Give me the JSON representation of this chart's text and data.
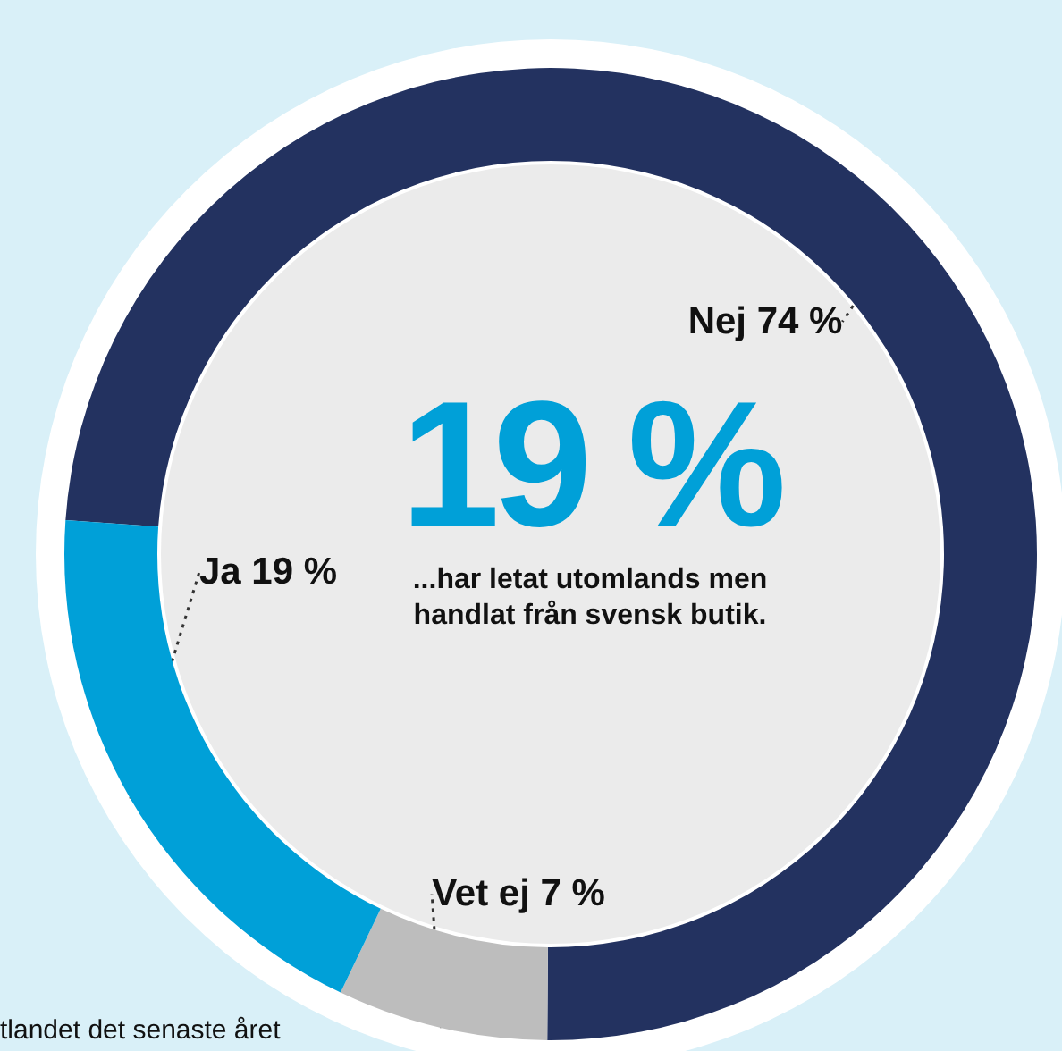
{
  "chart_data": {
    "type": "donut",
    "categories": [
      "Nej",
      "Vet ej",
      "Ja"
    ],
    "values": [
      74,
      7,
      19
    ],
    "colors": [
      "#233260",
      "#bdbdbd",
      "#00a0d8"
    ],
    "value_labels": [
      "74 %",
      "7 %",
      "19 %"
    ],
    "annotations": [
      "19 %",
      "...har letat utomlands men handlat från svensk butik.",
      "tlandet det senaste året"
    ],
    "legend": false
  }
}
